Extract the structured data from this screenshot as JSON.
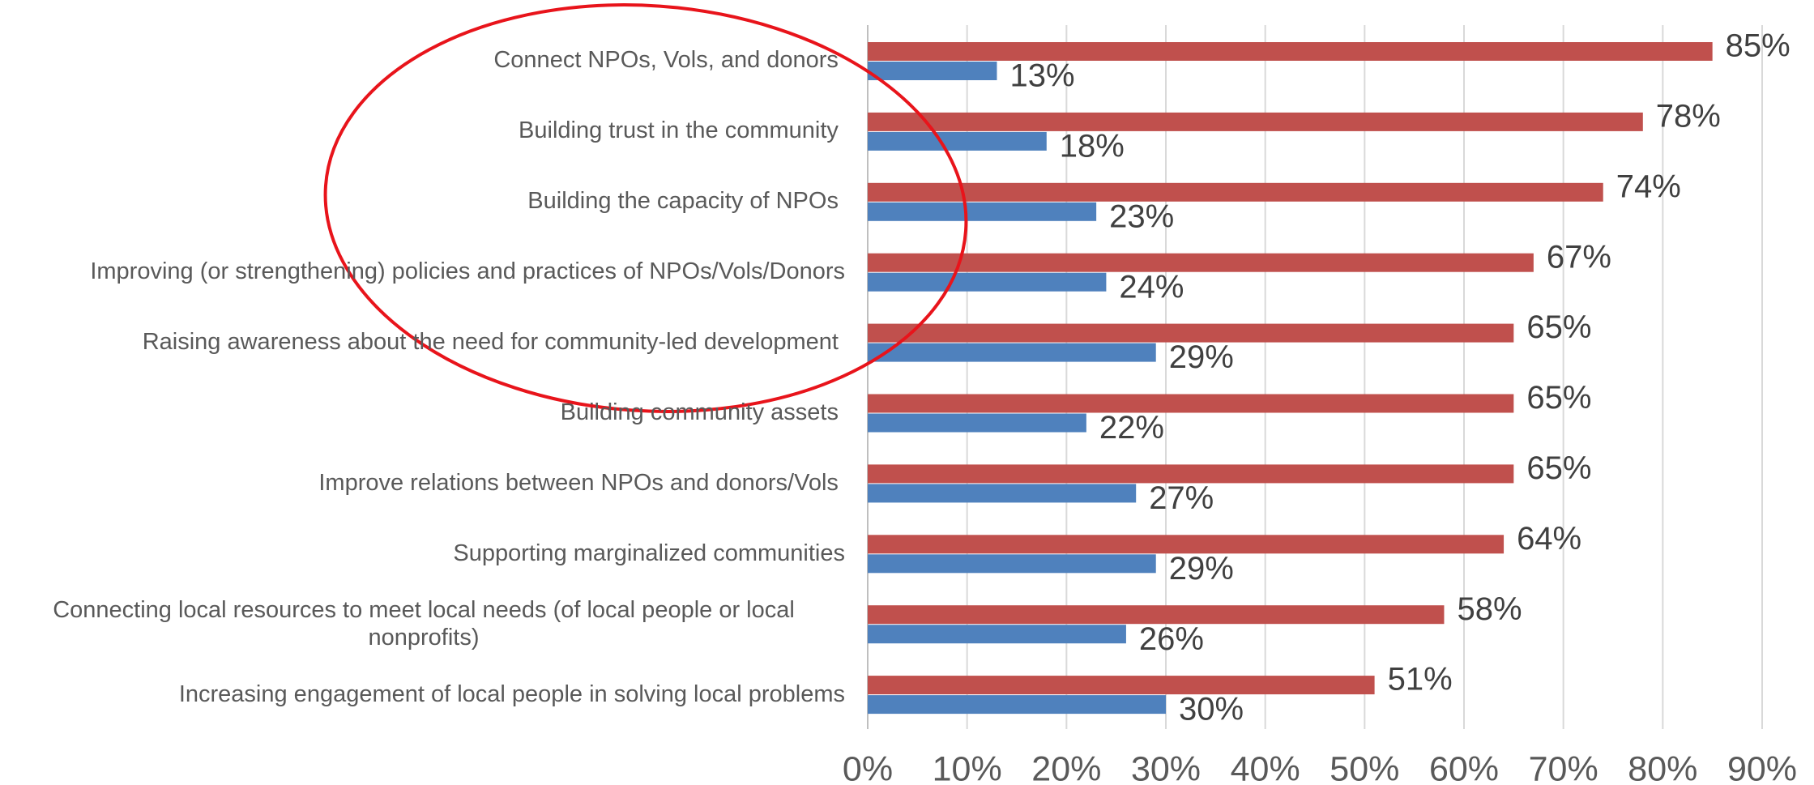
{
  "chart_data": {
    "type": "bar",
    "orientation": "horizontal",
    "categories": [
      "Connect NPOs, Vols, and donors ",
      "Building trust in the community ",
      "Building the capacity of NPOs ",
      "Improving (or strengthening) policies and practices of NPOs/Vols/Donors",
      "Raising awareness about the need for community-led development ",
      "Building community assets ",
      "Improve relations between NPOs and donors/Vols ",
      "Supporting marginalized communities",
      "Connecting local resources to meet local needs (of local people or local nonprofits)",
      "Increasing engagement of local people in solving local problems"
    ],
    "series": [
      {
        "color": "#c0504d",
        "values": [
          85,
          78,
          74,
          67,
          65,
          65,
          65,
          64,
          58,
          51
        ],
        "value_labels": [
          "85%",
          "78%",
          "74%",
          "67%",
          "65%",
          "65%",
          "65%",
          "64%",
          "58%",
          "51%"
        ]
      },
      {
        "color": "#4f81bd",
        "values": [
          13,
          18,
          23,
          24,
          29,
          22,
          27,
          29,
          26,
          30
        ],
        "value_labels": [
          "13%",
          "18%",
          "23%",
          "24%",
          "29%",
          "22%",
          "27%",
          "29%",
          "26%",
          "30%"
        ]
      }
    ],
    "xlim": [
      0,
      90
    ],
    "xticks": [
      {
        "value": 0,
        "label": "0%"
      },
      {
        "value": 10,
        "label": "10%"
      },
      {
        "value": 20,
        "label": "20%"
      },
      {
        "value": 30,
        "label": "30%"
      },
      {
        "value": 40,
        "label": "40%"
      },
      {
        "value": 50,
        "label": "50%"
      },
      {
        "value": 60,
        "label": "60%"
      },
      {
        "value": 70,
        "label": "70%"
      },
      {
        "value": 80,
        "label": "80%"
      },
      {
        "value": 90,
        "label": "90%"
      }
    ],
    "grid": true
  }
}
